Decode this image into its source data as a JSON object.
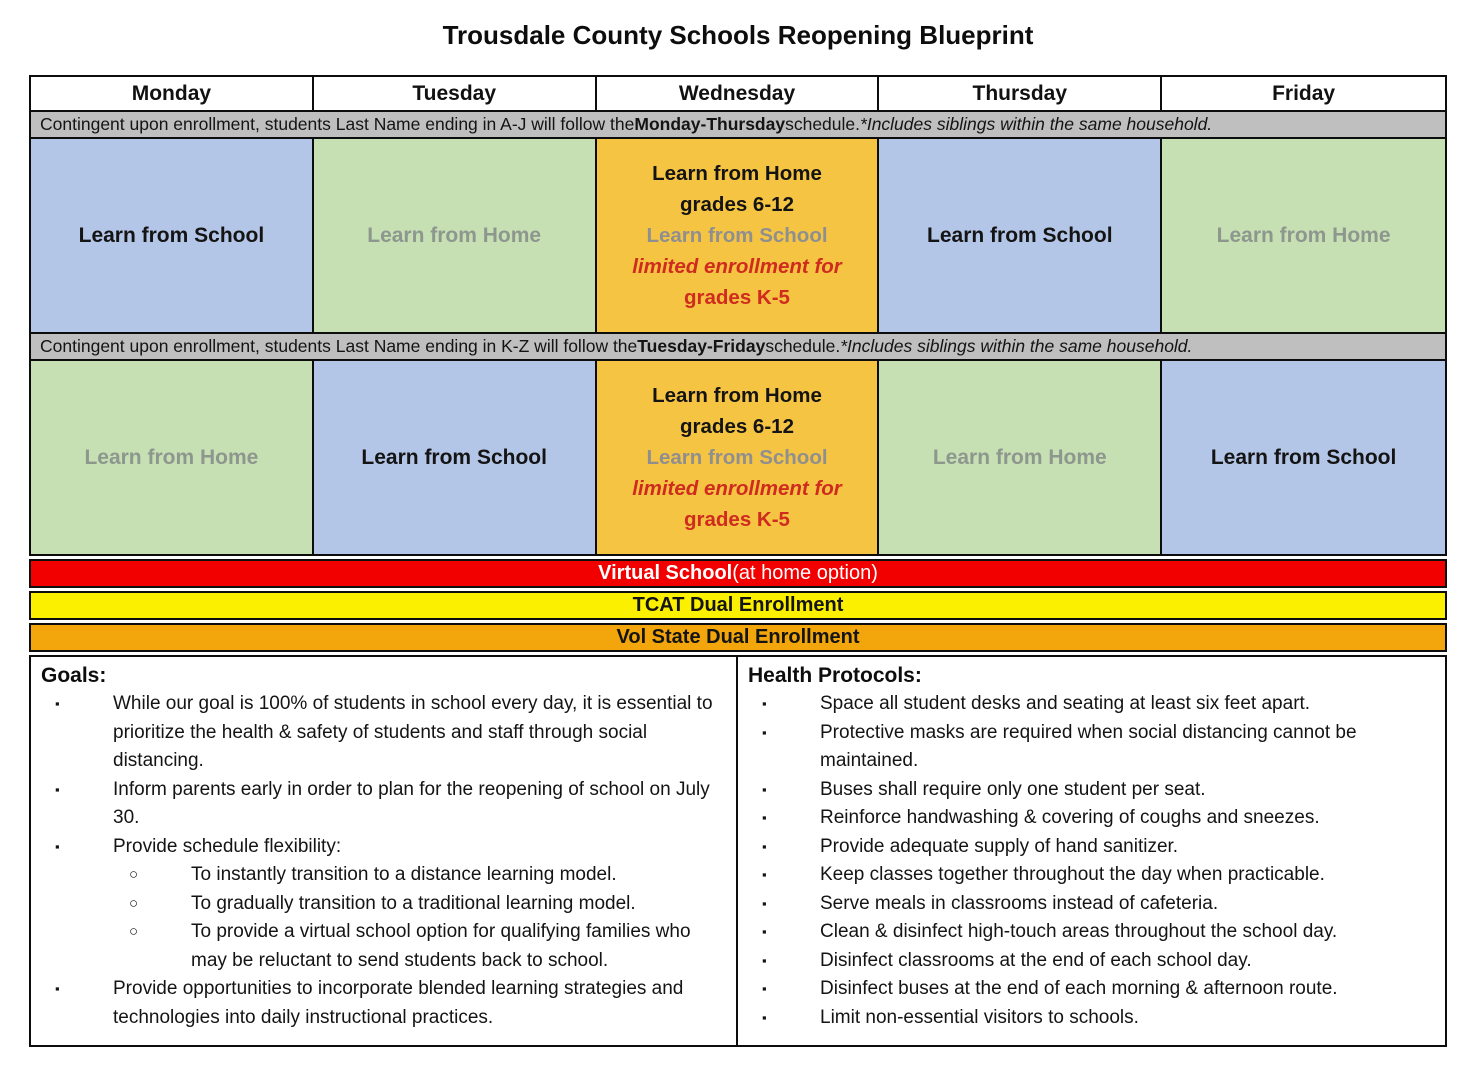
{
  "title": "Trousdale County Schools Reopening Blueprint",
  "colors": {
    "cell_blue": "#b4c6e7",
    "cell_green": "#c6e0b4",
    "cell_gold": "#f6c443",
    "banner_gray": "#bfbfbf",
    "strip_red": "#f20000",
    "strip_yellow": "#fbf000",
    "strip_orange": "#f3a60b",
    "muted_label_gray": "#8e978e",
    "alert_red_text": "#cf2b1e"
  },
  "days": [
    "Monday",
    "Tuesday",
    "Wednesday",
    "Thursday",
    "Friday"
  ],
  "banner_aj": {
    "prefix": "Contingent upon enrollment, students Last Name ending in A-J will follow the ",
    "bold": "Monday-Thursday",
    "mid": " schedule. ",
    "italic": "*Includes siblings within the same household."
  },
  "banner_kz": {
    "prefix": "Contingent upon enrollment, students Last Name ending in K-Z will follow the ",
    "bold": "Tuesday-Friday",
    "mid": " schedule. ",
    "italic": "*Includes siblings within the same household."
  },
  "week1": {
    "mon": "Learn from School",
    "tue": "Learn from Home",
    "wed": {
      "line1": "Learn from Home",
      "line2": "grades 6-12",
      "line3": "Learn from School",
      "line4": "limited enrollment for",
      "line5": "grades K-5"
    },
    "thu": "Learn from School",
    "fri": "Learn from Home"
  },
  "week2": {
    "mon": "Learn from Home",
    "tue": "Learn from School",
    "wed": {
      "line1": "Learn from Home",
      "line2": "grades 6-12",
      "line3": "Learn from School",
      "line4": "limited enrollment for",
      "line5": "grades K-5"
    },
    "thu": "Learn from Home",
    "fri": "Learn from School"
  },
  "strips": {
    "virtual_bold": "Virtual School",
    "virtual_rest": " (at home option)",
    "tcat": "TCAT Dual Enrollment",
    "volstate": "Vol State Dual Enrollment"
  },
  "goals": {
    "heading": "Goals:",
    "items": [
      {
        "text": "While our goal is 100% of students in school every day, it is essential to prioritize the health & safety of students and staff through social distancing."
      },
      {
        "text": "Inform parents early in order to plan for the reopening of school on July 30."
      },
      {
        "text": "Provide schedule flexibility:",
        "subs": [
          "To instantly transition to a distance learning model.",
          "To gradually transition to a traditional learning model.",
          "To provide a virtual school option for qualifying families who may be reluctant to send students back to school."
        ]
      },
      {
        "text": "Provide opportunities to incorporate blended learning strategies and technologies into daily instructional practices."
      }
    ]
  },
  "health": {
    "heading": "Health Protocols:",
    "items": [
      "Space all student desks and seating at least six feet apart.",
      "Protective masks are required when social distancing cannot be maintained.",
      "Buses shall require only one student per seat.",
      "Reinforce handwashing & covering of coughs and sneezes.",
      "Provide adequate supply of hand sanitizer.",
      "Keep classes together throughout the day when practicable.",
      "Serve meals in classrooms instead of cafeteria.",
      "Clean & disinfect high-touch areas throughout the school day.",
      "Disinfect classrooms at the end of each school day.",
      "Disinfect buses at the end of each morning & afternoon route.",
      "Limit non-essential visitors to schools."
    ]
  },
  "bullets": {
    "square": "▪",
    "circle": "○"
  }
}
